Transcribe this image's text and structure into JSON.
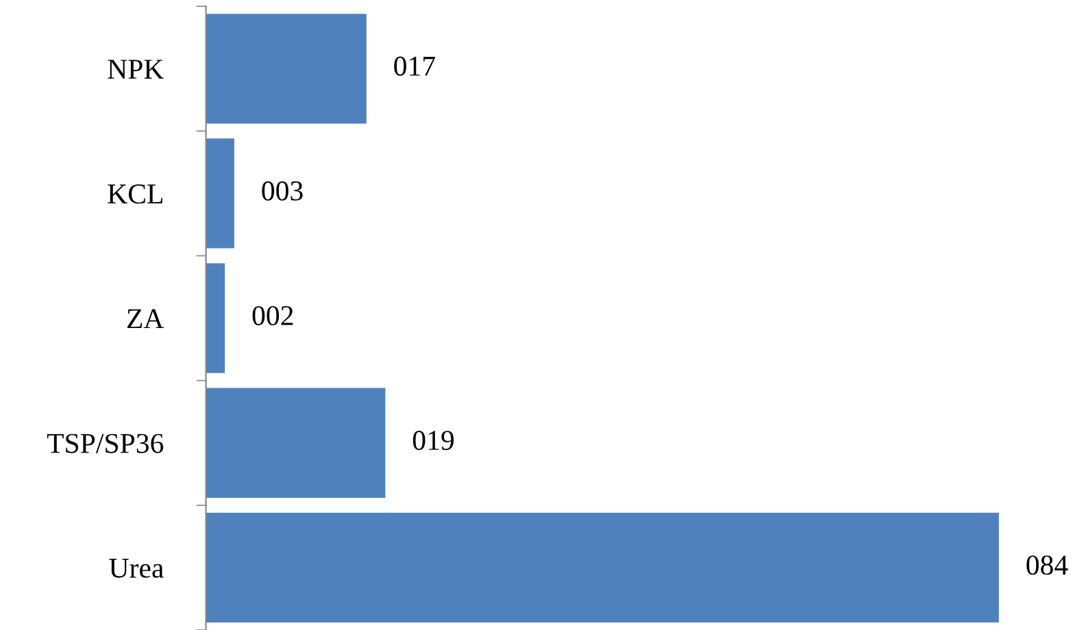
{
  "chart_data": {
    "type": "bar",
    "orientation": "horizontal",
    "categories": [
      "NPK",
      "KCL",
      "ZA",
      "TSP/SP36",
      "Urea"
    ],
    "values": [
      17,
      3,
      2,
      19,
      84
    ],
    "value_labels": [
      "017",
      "003",
      "002",
      "019",
      "084"
    ],
    "color": "#4f81bd",
    "grid": false,
    "legend": false
  }
}
